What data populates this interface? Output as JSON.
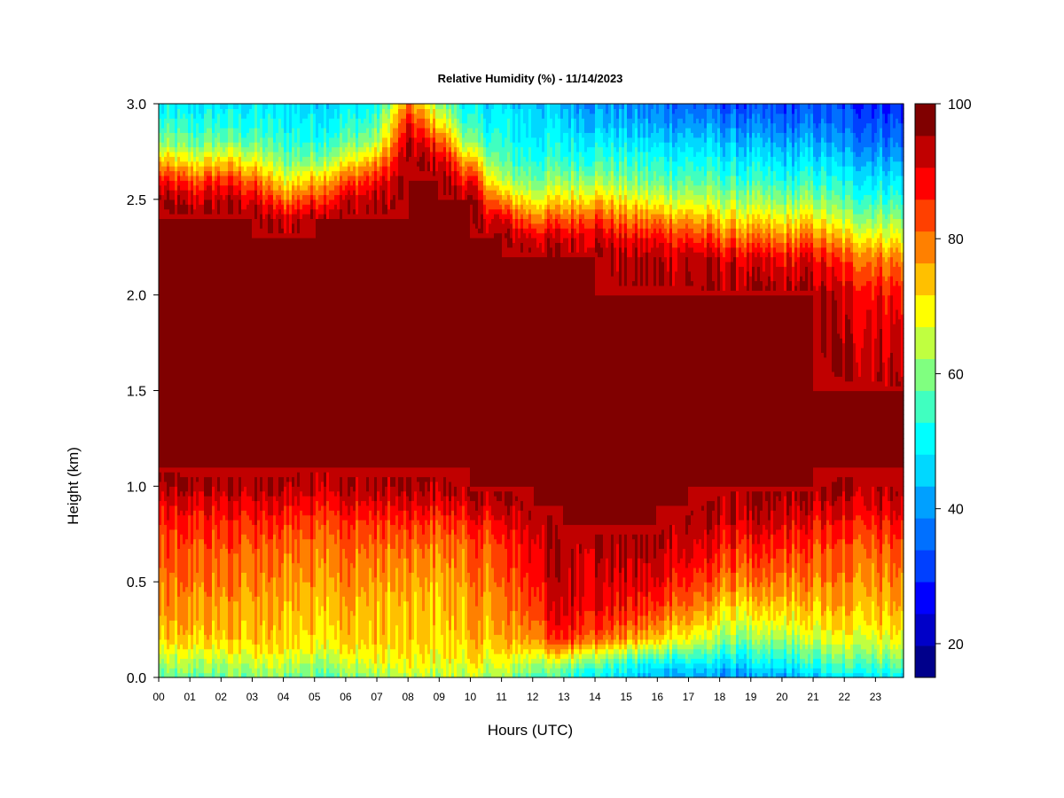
{
  "chart_data": {
    "type": "heatmap",
    "title": "Relative Humidity (%) - 11/14/2023",
    "xlabel": "Hours (UTC)",
    "ylabel": "Height (km)",
    "x_ticks": [
      "00",
      "01",
      "02",
      "03",
      "04",
      "05",
      "06",
      "07",
      "08",
      "09",
      "10",
      "11",
      "12",
      "13",
      "14",
      "15",
      "16",
      "17",
      "18",
      "19",
      "20",
      "21",
      "22",
      "23"
    ],
    "xlim": [
      0,
      23.9
    ],
    "y_ticks": [
      "0.0",
      "0.5",
      "1.0",
      "1.5",
      "2.0",
      "2.5",
      "3.0"
    ],
    "ylim": [
      0,
      3.0
    ],
    "colorbar": {
      "min": 15,
      "max": 100,
      "step": 5,
      "tick_labels": [
        "20",
        "40",
        "60",
        "80",
        "100"
      ],
      "colors": [
        "#00008B",
        "#0000C8",
        "#0000FF",
        "#0040FF",
        "#0070FF",
        "#00A0FF",
        "#00D8FF",
        "#00FFFF",
        "#40FFC0",
        "#80FF80",
        "#C0FF40",
        "#FFFF00",
        "#FFC000",
        "#FF8000",
        "#FF4000",
        "#FF0000",
        "#C00000",
        "#800000"
      ]
    },
    "profile_hours": [
      0,
      1,
      2,
      3,
      4,
      5,
      6,
      7,
      8,
      9,
      10,
      11,
      12,
      13,
      14,
      15,
      16,
      17,
      18,
      19,
      20,
      21,
      22,
      23.9
    ],
    "profile_heights_km": [
      0,
      0.05,
      0.1,
      0.15,
      0.2,
      0.3,
      0.4,
      0.5,
      0.6,
      0.7,
      0.8,
      0.9,
      1.0,
      1.1,
      1.2,
      1.5,
      2.0,
      2.2,
      2.3,
      2.4,
      2.5,
      2.6,
      2.7,
      2.8,
      2.9,
      3.0
    ],
    "values": [
      [
        58,
        62,
        66,
        70,
        74,
        78,
        80,
        82,
        84,
        86,
        88,
        92,
        98,
        100,
        100,
        100,
        100,
        100,
        100,
        100,
        100,
        92,
        78,
        62,
        55,
        50
      ],
      [
        60,
        64,
        68,
        72,
        76,
        79,
        81,
        83,
        85,
        87,
        90,
        94,
        99,
        100,
        100,
        100,
        100,
        100,
        100,
        100,
        96,
        86,
        72,
        60,
        54,
        50
      ],
      [
        60,
        64,
        68,
        72,
        76,
        79,
        81,
        83,
        85,
        87,
        90,
        94,
        99,
        100,
        100,
        100,
        100,
        100,
        100,
        100,
        98,
        90,
        76,
        62,
        55,
        50
      ],
      [
        62,
        66,
        70,
        74,
        77,
        78,
        80,
        82,
        84,
        86,
        90,
        94,
        99,
        100,
        100,
        100,
        100,
        100,
        100,
        100,
        96,
        86,
        72,
        60,
        54,
        50
      ],
      [
        62,
        66,
        70,
        74,
        76,
        77,
        79,
        81,
        83,
        85,
        89,
        94,
        99,
        100,
        100,
        100,
        100,
        100,
        100,
        96,
        84,
        72,
        62,
        56,
        52,
        50
      ],
      [
        60,
        64,
        68,
        72,
        75,
        77,
        79,
        81,
        83,
        85,
        88,
        93,
        98,
        100,
        100,
        100,
        100,
        100,
        100,
        100,
        90,
        78,
        64,
        56,
        52,
        49
      ],
      [
        62,
        66,
        70,
        74,
        76,
        78,
        80,
        82,
        84,
        86,
        89,
        94,
        99,
        100,
        100,
        100,
        100,
        100,
        100,
        100,
        96,
        86,
        72,
        60,
        54,
        50
      ],
      [
        64,
        68,
        72,
        74,
        76,
        77,
        78,
        80,
        82,
        85,
        88,
        94,
        99,
        100,
        100,
        100,
        100,
        100,
        100,
        100,
        98,
        92,
        80,
        66,
        58,
        52
      ],
      [
        66,
        70,
        72,
        74,
        75,
        76,
        77,
        79,
        81,
        84,
        88,
        94,
        99,
        100,
        100,
        100,
        100,
        100,
        100,
        100,
        100,
        100,
        100,
        98,
        92,
        82
      ],
      [
        66,
        70,
        72,
        74,
        75,
        76,
        77,
        79,
        81,
        84,
        88,
        94,
        99,
        100,
        100,
        100,
        100,
        100,
        100,
        100,
        100,
        100,
        98,
        88,
        76,
        64
      ],
      [
        66,
        70,
        73,
        75,
        77,
        79,
        80,
        82,
        84,
        86,
        90,
        96,
        100,
        100,
        100,
        100,
        100,
        100,
        100,
        100,
        100,
        92,
        78,
        62,
        54,
        50
      ],
      [
        64,
        68,
        72,
        75,
        78,
        80,
        82,
        84,
        86,
        88,
        92,
        98,
        100,
        100,
        100,
        100,
        100,
        100,
        100,
        94,
        80,
        66,
        58,
        54,
        52,
        48
      ],
      [
        60,
        64,
        70,
        76,
        82,
        86,
        90,
        92,
        94,
        96,
        98,
        100,
        100,
        100,
        100,
        100,
        100,
        100,
        96,
        84,
        72,
        62,
        56,
        52,
        50,
        47
      ],
      [
        56,
        62,
        70,
        80,
        90,
        95,
        97,
        98,
        99,
        100,
        100,
        100,
        100,
        100,
        100,
        100,
        100,
        100,
        96,
        86,
        74,
        64,
        56,
        52,
        48,
        44
      ],
      [
        52,
        58,
        66,
        76,
        86,
        92,
        95,
        97,
        98,
        99,
        100,
        100,
        100,
        100,
        100,
        100,
        100,
        100,
        98,
        90,
        78,
        66,
        58,
        52,
        46,
        42
      ],
      [
        48,
        52,
        60,
        70,
        80,
        88,
        92,
        95,
        97,
        99,
        100,
        100,
        100,
        100,
        100,
        100,
        100,
        98,
        92,
        82,
        72,
        62,
        56,
        50,
        44,
        40
      ],
      [
        44,
        48,
        56,
        66,
        76,
        84,
        90,
        94,
        97,
        99,
        100,
        100,
        100,
        100,
        100,
        100,
        100,
        98,
        92,
        82,
        70,
        60,
        54,
        48,
        42,
        38
      ],
      [
        44,
        48,
        56,
        64,
        72,
        80,
        86,
        90,
        94,
        97,
        99,
        100,
        100,
        100,
        100,
        100,
        100,
        98,
        90,
        80,
        68,
        60,
        54,
        48,
        42,
        36
      ],
      [
        40,
        46,
        52,
        58,
        64,
        72,
        78,
        84,
        88,
        92,
        96,
        99,
        100,
        100,
        100,
        100,
        100,
        96,
        86,
        76,
        66,
        58,
        52,
        46,
        40,
        34
      ],
      [
        40,
        46,
        52,
        56,
        62,
        70,
        76,
        82,
        86,
        90,
        95,
        98,
        100,
        100,
        100,
        100,
        100,
        94,
        84,
        74,
        64,
        56,
        50,
        44,
        38,
        32
      ],
      [
        42,
        48,
        54,
        58,
        64,
        72,
        78,
        82,
        86,
        90,
        95,
        98,
        100,
        100,
        100,
        100,
        100,
        92,
        82,
        72,
        62,
        54,
        48,
        42,
        36,
        32
      ],
      [
        46,
        52,
        58,
        62,
        68,
        74,
        78,
        82,
        85,
        88,
        92,
        97,
        100,
        100,
        100,
        100,
        100,
        94,
        84,
        74,
        64,
        56,
        50,
        44,
        38,
        34
      ],
      [
        50,
        56,
        62,
        66,
        70,
        76,
        79,
        82,
        84,
        87,
        91,
        96,
        99,
        100,
        100,
        100,
        96,
        86,
        76,
        66,
        58,
        52,
        46,
        40,
        36,
        32
      ],
      [
        52,
        58,
        64,
        68,
        72,
        77,
        80,
        83,
        85,
        88,
        92,
        97,
        100,
        100,
        100,
        100,
        92,
        82,
        72,
        64,
        56,
        50,
        44,
        38,
        34,
        30
      ]
    ]
  }
}
